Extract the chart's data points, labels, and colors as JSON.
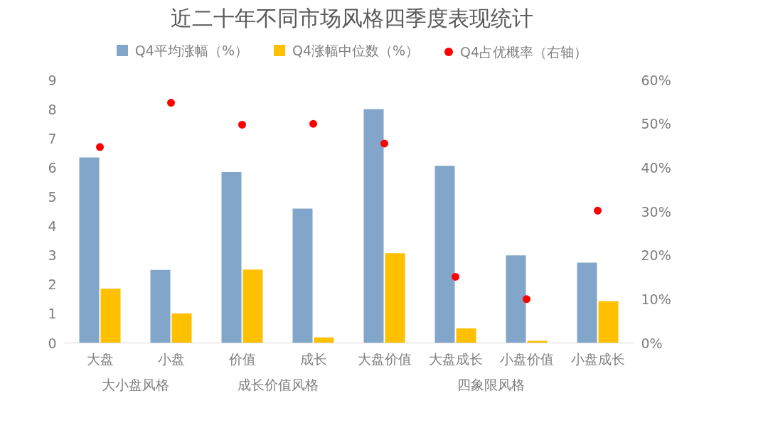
{
  "chart_data": {
    "type": "bar",
    "title": "近二十年不同市场风格四季度表现统计",
    "categories": [
      "大盘",
      "小盘",
      "价值",
      "成长",
      "大盘价值",
      "大盘成长",
      "小盘价值",
      "小盘成长"
    ],
    "series": [
      {
        "name": "Q4平均涨幅（%）",
        "color": "#82a6c9",
        "values": [
          6.35,
          2.5,
          5.85,
          4.6,
          8.0,
          6.06,
          3.0,
          2.75
        ]
      },
      {
        "name": "Q4涨幅中位数（%）",
        "color": "#ffc000",
        "values": [
          1.86,
          1.01,
          2.51,
          0.19,
          3.07,
          0.5,
          0.07,
          1.43
        ]
      },
      {
        "name": "Q4占优概率（右轴）",
        "color": "#ff0000",
        "type": "scatter",
        "axis": "y2",
        "values": [
          44.7,
          54.8,
          49.8,
          50.0,
          45.5,
          15.1,
          10.0,
          30.2
        ]
      }
    ],
    "ylim": [
      0,
      9
    ],
    "yticks": [
      0,
      1,
      2,
      3,
      4,
      5,
      6,
      7,
      8,
      9
    ],
    "y2lim": [
      0,
      60
    ],
    "y2ticks": [
      {
        "value": 0,
        "label": "0%"
      },
      {
        "value": 10,
        "label": "10%"
      },
      {
        "value": 20,
        "label": "20%"
      },
      {
        "value": 30,
        "label": "30%"
      },
      {
        "value": 40,
        "label": "40%"
      },
      {
        "value": 50,
        "label": "50%"
      },
      {
        "value": 60,
        "label": "60%"
      }
    ],
    "marker": "circle",
    "grid": false,
    "legend": "top",
    "annotations": [
      "大小盘风格",
      "成长价值风格",
      "四象限风格"
    ]
  }
}
